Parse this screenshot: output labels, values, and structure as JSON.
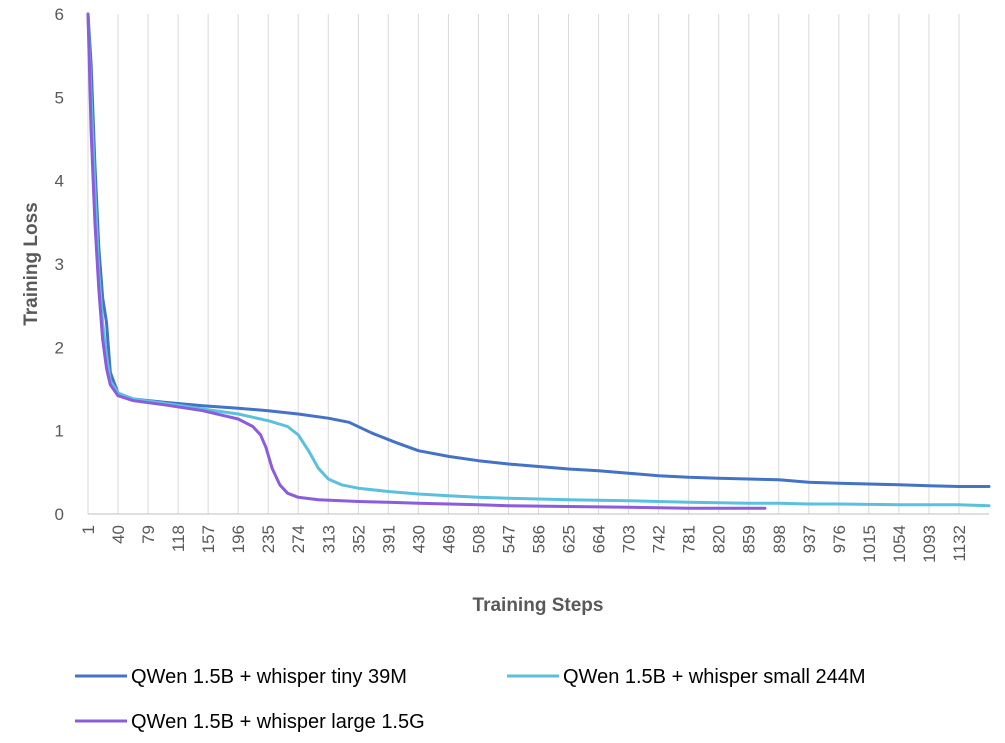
{
  "chart_data": {
    "type": "line",
    "title": "",
    "xlabel": "Training Steps",
    "ylabel": "Training Loss",
    "ylim": [
      0,
      6
    ],
    "yticks": [
      "0",
      "1",
      "2",
      "3",
      "4",
      "5",
      "6"
    ],
    "xlim": [
      1,
      1171
    ],
    "xticks": [
      "1",
      "40",
      "79",
      "118",
      "157",
      "196",
      "235",
      "274",
      "313",
      "352",
      "391",
      "430",
      "469",
      "508",
      "547",
      "586",
      "625",
      "664",
      "703",
      "742",
      "781",
      "820",
      "859",
      "898",
      "937",
      "976",
      "1015",
      "1054",
      "1093",
      "1132"
    ],
    "grid": "vertical",
    "legend": "bottom",
    "series": [
      {
        "name": "QWen 1.5B + whisper tiny 39M",
        "color": "#4472C4",
        "x": [
          1,
          5,
          10,
          15,
          20,
          25,
          30,
          40,
          60,
          100,
          150,
          196,
          235,
          274,
          313,
          340,
          370,
          400,
          430,
          470,
          508,
          547,
          586,
          625,
          664,
          703,
          742,
          781,
          820,
          859,
          898,
          937,
          976,
          1015,
          1054,
          1093,
          1132,
          1171
        ],
        "y": [
          6.0,
          5.4,
          4.2,
          3.2,
          2.6,
          2.3,
          1.7,
          1.45,
          1.38,
          1.34,
          1.3,
          1.27,
          1.24,
          1.2,
          1.15,
          1.1,
          0.97,
          0.86,
          0.76,
          0.69,
          0.64,
          0.6,
          0.57,
          0.54,
          0.52,
          0.49,
          0.46,
          0.44,
          0.43,
          0.42,
          0.41,
          0.38,
          0.37,
          0.36,
          0.35,
          0.34,
          0.33,
          0.33
        ]
      },
      {
        "name": "QWen 1.5B + whisper small 244M",
        "color": "#5BC0DE",
        "x": [
          1,
          5,
          10,
          15,
          20,
          25,
          30,
          40,
          60,
          100,
          150,
          196,
          235,
          260,
          274,
          288,
          300,
          313,
          330,
          352,
          391,
          430,
          469,
          508,
          547,
          586,
          625,
          664,
          703,
          742,
          781,
          820,
          859,
          898,
          937,
          976,
          1015,
          1054,
          1093,
          1132,
          1171
        ],
        "y": [
          6.0,
          5.0,
          3.9,
          2.9,
          2.3,
          1.9,
          1.6,
          1.45,
          1.38,
          1.33,
          1.26,
          1.2,
          1.12,
          1.05,
          0.95,
          0.75,
          0.55,
          0.42,
          0.35,
          0.31,
          0.27,
          0.24,
          0.22,
          0.2,
          0.19,
          0.18,
          0.17,
          0.165,
          0.16,
          0.15,
          0.14,
          0.135,
          0.13,
          0.13,
          0.12,
          0.12,
          0.115,
          0.11,
          0.11,
          0.11,
          0.1
        ]
      },
      {
        "name": "QWen 1.5B + whisper large 1.5G",
        "color": "#8B5CDB",
        "x": [
          1,
          5,
          10,
          15,
          20,
          25,
          30,
          40,
          60,
          100,
          150,
          196,
          215,
          225,
          232,
          240,
          250,
          260,
          274,
          300,
          352,
          391,
          430,
          469,
          508,
          547,
          586,
          625,
          664,
          703,
          742,
          781,
          820,
          859,
          880
        ],
        "y": [
          6.0,
          4.6,
          3.5,
          2.7,
          2.1,
          1.75,
          1.55,
          1.42,
          1.36,
          1.31,
          1.24,
          1.14,
          1.05,
          0.95,
          0.8,
          0.55,
          0.35,
          0.25,
          0.2,
          0.17,
          0.15,
          0.14,
          0.13,
          0.12,
          0.11,
          0.1,
          0.095,
          0.09,
          0.085,
          0.08,
          0.075,
          0.07,
          0.07,
          0.07,
          0.07
        ]
      }
    ]
  }
}
